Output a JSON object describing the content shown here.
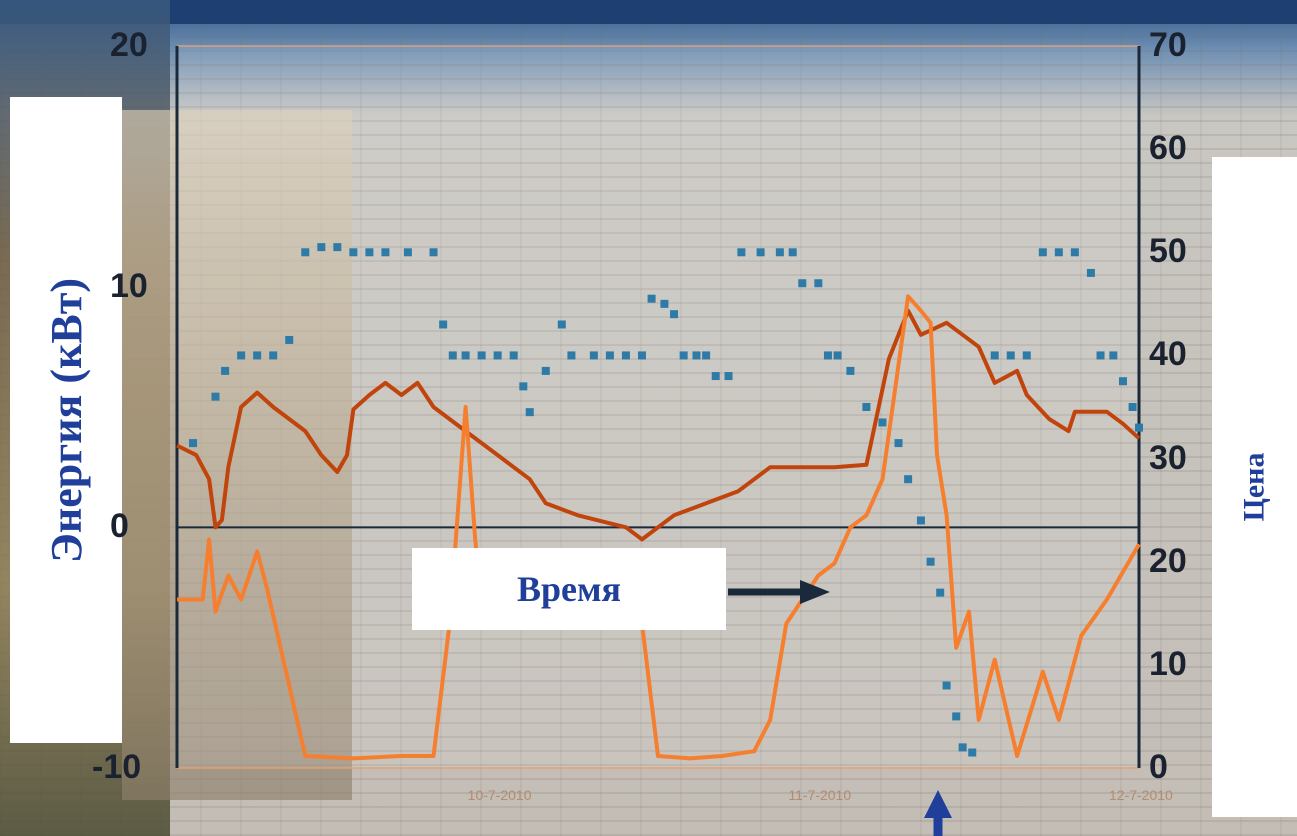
{
  "chart_data": {
    "type": "line",
    "xlabel": "Время",
    "ylabel": "Энергия (кВт)",
    "y2label": "Цена",
    "ylim": [
      -10,
      20
    ],
    "y2lim": [
      0,
      70
    ],
    "left_ticks": [
      "20",
      "10",
      "0",
      "-10"
    ],
    "right_ticks": [
      "70",
      "60",
      "50",
      "40",
      "30",
      "20",
      "10",
      "0"
    ],
    "x_ticks": [
      "10-7-2010",
      "11-7-2010",
      "12-7-2010"
    ],
    "xlim": [
      0,
      3
    ],
    "series": [
      {
        "axis": "left",
        "kind": "line",
        "color": "#c0440c",
        "points": [
          [
            0.0,
            3.4
          ],
          [
            0.06,
            3.0
          ],
          [
            0.1,
            2.0
          ],
          [
            0.12,
            0.0
          ],
          [
            0.14,
            0.3
          ],
          [
            0.16,
            2.5
          ],
          [
            0.2,
            5.0
          ],
          [
            0.25,
            5.6
          ],
          [
            0.3,
            5.0
          ],
          [
            0.4,
            4.0
          ],
          [
            0.45,
            3.0
          ],
          [
            0.5,
            2.3
          ],
          [
            0.53,
            3.0
          ],
          [
            0.55,
            4.9
          ],
          [
            0.6,
            5.5
          ],
          [
            0.65,
            6.0
          ],
          [
            0.7,
            5.5
          ],
          [
            0.75,
            6.0
          ],
          [
            0.8,
            5.0
          ],
          [
            0.9,
            4.0
          ],
          [
            1.0,
            3.0
          ],
          [
            1.05,
            2.5
          ],
          [
            1.1,
            2.0
          ],
          [
            1.15,
            1.0
          ],
          [
            1.25,
            0.5
          ],
          [
            1.4,
            0.0
          ],
          [
            1.45,
            -0.5
          ],
          [
            1.55,
            0.5
          ],
          [
            1.65,
            1.0
          ],
          [
            1.75,
            1.5
          ],
          [
            1.85,
            2.5
          ],
          [
            2.05,
            2.5
          ],
          [
            2.15,
            2.6
          ],
          [
            2.22,
            7.0
          ],
          [
            2.28,
            9.0
          ],
          [
            2.32,
            8.0
          ],
          [
            2.4,
            8.5
          ],
          [
            2.5,
            7.5
          ],
          [
            2.55,
            6.0
          ],
          [
            2.62,
            6.5
          ],
          [
            2.65,
            5.5
          ],
          [
            2.72,
            4.5
          ],
          [
            2.78,
            4.0
          ],
          [
            2.8,
            4.8
          ],
          [
            2.9,
            4.8
          ],
          [
            2.95,
            4.3
          ],
          [
            3.0,
            3.7
          ]
        ]
      },
      {
        "axis": "left",
        "kind": "line",
        "color": "#f57f2f",
        "points": [
          [
            0.0,
            -3.0
          ],
          [
            0.08,
            -3.0
          ],
          [
            0.1,
            -0.5
          ],
          [
            0.12,
            -3.5
          ],
          [
            0.16,
            -2.0
          ],
          [
            0.2,
            -3.0
          ],
          [
            0.25,
            -1.0
          ],
          [
            0.28,
            -2.5
          ],
          [
            0.4,
            -9.5
          ],
          [
            0.55,
            -9.6
          ],
          [
            0.7,
            -9.5
          ],
          [
            0.8,
            -9.5
          ],
          [
            0.85,
            -4.0
          ],
          [
            0.9,
            5.0
          ],
          [
            0.93,
            -0.5
          ],
          [
            0.95,
            -3.0
          ],
          [
            1.0,
            -1.5
          ],
          [
            1.1,
            -2.0
          ],
          [
            1.2,
            -1.0
          ],
          [
            1.3,
            -3.5
          ],
          [
            1.4,
            -2.0
          ],
          [
            1.45,
            -4.0
          ],
          [
            1.5,
            -9.5
          ],
          [
            1.6,
            -9.6
          ],
          [
            1.7,
            -9.5
          ],
          [
            1.8,
            -9.3
          ],
          [
            1.85,
            -8.0
          ],
          [
            1.9,
            -4.0
          ],
          [
            1.95,
            -3.0
          ],
          [
            2.0,
            -2.0
          ],
          [
            2.05,
            -1.5
          ],
          [
            2.1,
            0.0
          ],
          [
            2.15,
            0.5
          ],
          [
            2.2,
            2.0
          ],
          [
            2.28,
            9.6
          ],
          [
            2.32,
            9.0
          ],
          [
            2.35,
            8.5
          ],
          [
            2.37,
            3.0
          ],
          [
            2.4,
            0.5
          ],
          [
            2.43,
            -5.0
          ],
          [
            2.47,
            -3.5
          ],
          [
            2.5,
            -8.0
          ],
          [
            2.55,
            -5.5
          ],
          [
            2.62,
            -9.5
          ],
          [
            2.7,
            -6.0
          ],
          [
            2.75,
            -8.0
          ],
          [
            2.82,
            -4.5
          ],
          [
            2.9,
            -3.0
          ],
          [
            3.0,
            -0.7
          ]
        ]
      },
      {
        "axis": "right",
        "kind": "scatter",
        "color": "#2e7ba8",
        "points": [
          [
            0.05,
            31.5
          ],
          [
            0.12,
            36.0
          ],
          [
            0.15,
            38.5
          ],
          [
            0.2,
            40.0
          ],
          [
            0.25,
            40.0
          ],
          [
            0.3,
            40.0
          ],
          [
            0.35,
            41.5
          ],
          [
            0.4,
            50.0
          ],
          [
            0.45,
            50.5
          ],
          [
            0.5,
            50.5
          ],
          [
            0.55,
            50.0
          ],
          [
            0.6,
            50.0
          ],
          [
            0.65,
            50.0
          ],
          [
            0.72,
            50.0
          ],
          [
            0.8,
            50.0
          ],
          [
            0.83,
            43.0
          ],
          [
            0.86,
            40.0
          ],
          [
            0.9,
            40.0
          ],
          [
            0.95,
            40.0
          ],
          [
            1.0,
            40.0
          ],
          [
            1.05,
            40.0
          ],
          [
            1.08,
            37.0
          ],
          [
            1.1,
            34.5
          ],
          [
            1.15,
            38.5
          ],
          [
            1.2,
            43.0
          ],
          [
            1.23,
            40.0
          ],
          [
            1.3,
            40.0
          ],
          [
            1.35,
            40.0
          ],
          [
            1.4,
            40.0
          ],
          [
            1.45,
            40.0
          ],
          [
            1.48,
            45.5
          ],
          [
            1.52,
            45.0
          ],
          [
            1.55,
            44.0
          ],
          [
            1.58,
            40.0
          ],
          [
            1.62,
            40.0
          ],
          [
            1.65,
            40.0
          ],
          [
            1.68,
            38.0
          ],
          [
            1.72,
            38.0
          ],
          [
            1.76,
            50.0
          ],
          [
            1.82,
            50.0
          ],
          [
            1.88,
            50.0
          ],
          [
            1.92,
            50.0
          ],
          [
            1.95,
            47.0
          ],
          [
            2.0,
            47.0
          ],
          [
            2.03,
            40.0
          ],
          [
            2.06,
            40.0
          ],
          [
            2.1,
            38.5
          ],
          [
            2.15,
            35.0
          ],
          [
            2.2,
            33.5
          ],
          [
            2.25,
            31.5
          ],
          [
            2.28,
            28.0
          ],
          [
            2.32,
            24.0
          ],
          [
            2.35,
            20.0
          ],
          [
            2.38,
            17.0
          ],
          [
            2.4,
            8.0
          ],
          [
            2.43,
            5.0
          ],
          [
            2.45,
            2.0
          ],
          [
            2.48,
            1.5
          ],
          [
            2.55,
            40.0
          ],
          [
            2.6,
            40.0
          ],
          [
            2.65,
            40.0
          ],
          [
            2.7,
            50.0
          ],
          [
            2.75,
            50.0
          ],
          [
            2.8,
            50.0
          ],
          [
            2.85,
            48.0
          ],
          [
            2.88,
            40.0
          ],
          [
            2.92,
            40.0
          ],
          [
            2.95,
            37.5
          ],
          [
            2.98,
            35.0
          ],
          [
            3.0,
            33.0
          ]
        ]
      }
    ],
    "grid": false
  }
}
